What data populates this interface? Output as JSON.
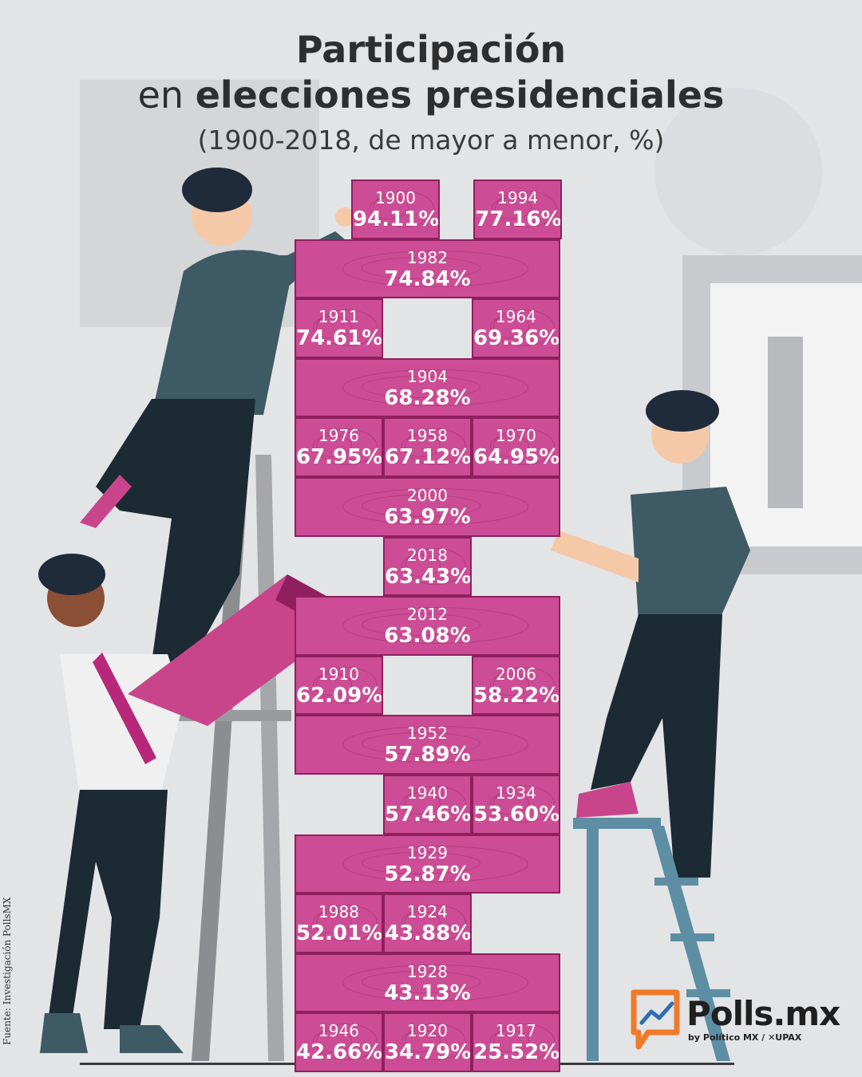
{
  "title": {
    "line1": "Participación",
    "line2_prefix": "en ",
    "line2_bold": "elecciones presidenciales"
  },
  "subtitle": "(1900-2018, de mayor a menor, %)",
  "source": "Fuente: Investigación PollsMX",
  "logo": {
    "name": "Polls.mx",
    "tagline": "by Político MX / ✕UPAX"
  },
  "colors": {
    "brick": "#cc4d95",
    "brick_border": "#8f1f5e",
    "logo_orange": "#f07a2a",
    "logo_blue": "#2f6db5"
  },
  "chart_data": {
    "type": "table",
    "title": "Participación en elecciones presidenciales",
    "subtitle": "(1900-2018, de mayor a menor, %)",
    "unit": "%",
    "order": "descending",
    "categories": [
      "1900",
      "1994",
      "1982",
      "1911",
      "1964",
      "1904",
      "1976",
      "1958",
      "1970",
      "2000",
      "2018",
      "2012",
      "1910",
      "2006",
      "1952",
      "1940",
      "1934",
      "1929",
      "1988",
      "1924",
      "1928",
      "1946",
      "1920",
      "1917"
    ],
    "values": [
      94.11,
      77.16,
      74.84,
      74.61,
      69.36,
      68.28,
      67.95,
      67.12,
      64.95,
      63.97,
      63.43,
      63.08,
      62.09,
      58.22,
      57.89,
      57.46,
      53.6,
      52.87,
      52.01,
      43.88,
      43.13,
      42.66,
      34.79,
      25.52
    ],
    "labels": [
      "94.11%",
      "77.16%",
      "74.84%",
      "74.61%",
      "69.36%",
      "68.28%",
      "67.95%",
      "67.12%",
      "64.95%",
      "63.97%",
      "63.43%",
      "63.08%",
      "62.09%",
      "58.22%",
      "57.89%",
      "57.46%",
      "53.60%",
      "52.87%",
      "52.01%",
      "43.88%",
      "43.13%",
      "42.66%",
      "34.79%",
      "25.52%"
    ]
  }
}
